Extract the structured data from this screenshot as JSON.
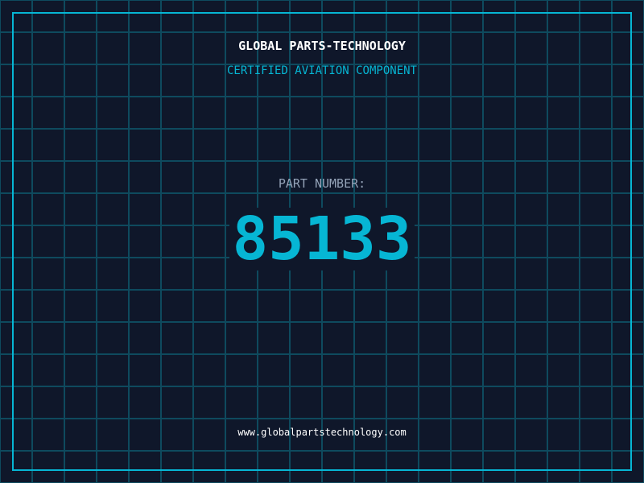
{
  "header": {
    "title": "GLOBAL PARTS-TECHNOLOGY",
    "subtitle": "CERTIFIED AVIATION COMPONENT"
  },
  "part": {
    "label": "PART NUMBER:",
    "number": "85133"
  },
  "footer": {
    "url": "www.globalpartstechnology.com"
  },
  "colors": {
    "background": "#0f172a",
    "accent": "#06b6d4",
    "grid": "#0e4a5e",
    "label": "#94a3b8"
  }
}
